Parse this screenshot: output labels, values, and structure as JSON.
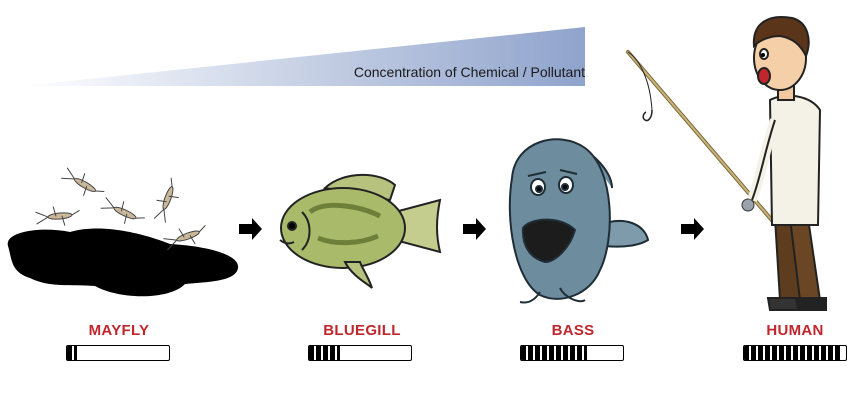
{
  "title": "Concentration of Chemical / Pollutant",
  "colors": {
    "label": "#c0272d",
    "wedge_start": "#ffffff",
    "wedge_end": "#8fa3cc"
  },
  "organisms": [
    {
      "id": "mayfly",
      "label": "MAYFLY",
      "level_fraction": 0.1
    },
    {
      "id": "bluegill",
      "label": "BLUEGILL",
      "level_fraction": 0.3
    },
    {
      "id": "bass",
      "label": "BASS",
      "level_fraction": 0.65
    },
    {
      "id": "human",
      "label": "HUMAN",
      "level_fraction": 0.95
    }
  ],
  "arrows": [
    "arrow-right-icon",
    "arrow-right-icon",
    "arrow-right-icon"
  ]
}
